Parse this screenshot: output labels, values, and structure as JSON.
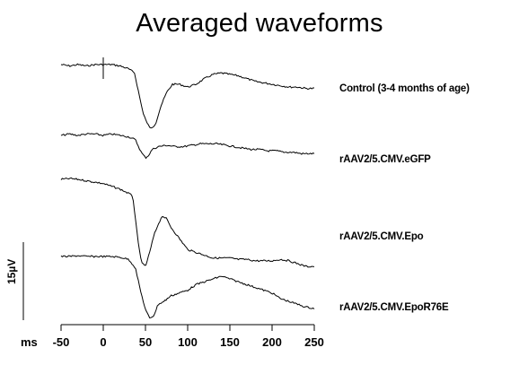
{
  "title": "Averaged waveforms",
  "chart_data": {
    "type": "line",
    "title": "Averaged waveforms",
    "xlabel": "ms",
    "xlim": [
      -50,
      250
    ],
    "xticks": [
      -50,
      0,
      50,
      100,
      150,
      200,
      250
    ],
    "scale_bar": "15µV",
    "stimulus_ms": 0,
    "series": [
      {
        "name": "Control (3-4 months of age)",
        "points": [
          [
            -50,
            0
          ],
          [
            -40,
            -0.5
          ],
          [
            -30,
            0
          ],
          [
            -20,
            -0.5
          ],
          [
            -10,
            0
          ],
          [
            0,
            0
          ],
          [
            10,
            0
          ],
          [
            20,
            -0.5
          ],
          [
            30,
            -1.5
          ],
          [
            37,
            -3
          ],
          [
            42,
            -10
          ],
          [
            47,
            -17
          ],
          [
            52,
            -21
          ],
          [
            57,
            -23
          ],
          [
            62,
            -21
          ],
          [
            68,
            -15
          ],
          [
            75,
            -10
          ],
          [
            82,
            -7
          ],
          [
            90,
            -7
          ],
          [
            100,
            -8
          ],
          [
            110,
            -7
          ],
          [
            120,
            -5
          ],
          [
            130,
            -3.5
          ],
          [
            140,
            -3
          ],
          [
            150,
            -3.5
          ],
          [
            160,
            -4
          ],
          [
            170,
            -5
          ],
          [
            180,
            -6
          ],
          [
            190,
            -6.5
          ],
          [
            200,
            -7
          ],
          [
            210,
            -7.5
          ],
          [
            220,
            -8
          ],
          [
            230,
            -8
          ],
          [
            240,
            -8.5
          ],
          [
            250,
            -8.5
          ]
        ],
        "color": "#000000"
      },
      {
        "name": "rAAV2/5.CMV.eGFP",
        "points": [
          [
            -50,
            0
          ],
          [
            -40,
            0.5
          ],
          [
            -30,
            0
          ],
          [
            -20,
            0.5
          ],
          [
            -10,
            0.5
          ],
          [
            0,
            0
          ],
          [
            10,
            0.5
          ],
          [
            20,
            0
          ],
          [
            30,
            -0.5
          ],
          [
            38,
            -1.5
          ],
          [
            45,
            -6
          ],
          [
            50,
            -8
          ],
          [
            54,
            -7
          ],
          [
            58,
            -5
          ],
          [
            65,
            -4
          ],
          [
            75,
            -3.5
          ],
          [
            85,
            -4
          ],
          [
            95,
            -4
          ],
          [
            105,
            -3.5
          ],
          [
            115,
            -3
          ],
          [
            125,
            -3
          ],
          [
            135,
            -3
          ],
          [
            145,
            -3.5
          ],
          [
            155,
            -4
          ],
          [
            165,
            -4.5
          ],
          [
            175,
            -5
          ],
          [
            185,
            -5
          ],
          [
            195,
            -5.5
          ],
          [
            205,
            -5.5
          ],
          [
            215,
            -6
          ],
          [
            225,
            -6
          ],
          [
            235,
            -6.5
          ],
          [
            250,
            -6.5
          ]
        ],
        "color": "#000000"
      },
      {
        "name": "rAAV2/5.CMV.Epo",
        "points": [
          [
            -50,
            0
          ],
          [
            -40,
            0.3
          ],
          [
            -30,
            0
          ],
          [
            -20,
            -0.5
          ],
          [
            -10,
            -1
          ],
          [
            0,
            -1.5
          ],
          [
            10,
            -2.5
          ],
          [
            20,
            -3.5
          ],
          [
            30,
            -5
          ],
          [
            35,
            -6
          ],
          [
            38,
            -14
          ],
          [
            42,
            -24
          ],
          [
            46,
            -30
          ],
          [
            50,
            -31
          ],
          [
            55,
            -26
          ],
          [
            60,
            -20
          ],
          [
            65,
            -16
          ],
          [
            70,
            -13
          ],
          [
            75,
            -14
          ],
          [
            80,
            -17
          ],
          [
            90,
            -21
          ],
          [
            100,
            -25
          ],
          [
            110,
            -26
          ],
          [
            120,
            -27
          ],
          [
            130,
            -28
          ],
          [
            140,
            -28
          ],
          [
            150,
            -28
          ],
          [
            160,
            -28.5
          ],
          [
            170,
            -28.5
          ],
          [
            180,
            -29
          ],
          [
            190,
            -29
          ],
          [
            200,
            -29
          ],
          [
            210,
            -28.5
          ],
          [
            220,
            -29
          ],
          [
            230,
            -30
          ],
          [
            240,
            -31
          ],
          [
            250,
            -31
          ]
        ],
        "color": "#000000"
      },
      {
        "name": "rAAV2/5.CMV.EpoR76E",
        "points": [
          [
            -50,
            0
          ],
          [
            -40,
            0
          ],
          [
            -30,
            0.3
          ],
          [
            -20,
            0
          ],
          [
            -10,
            0
          ],
          [
            0,
            0
          ],
          [
            10,
            0
          ],
          [
            20,
            -0.3
          ],
          [
            30,
            -1
          ],
          [
            38,
            -4
          ],
          [
            44,
            -12
          ],
          [
            50,
            -19
          ],
          [
            55,
            -22
          ],
          [
            60,
            -21
          ],
          [
            65,
            -17
          ],
          [
            72,
            -16
          ],
          [
            80,
            -14
          ],
          [
            90,
            -13
          ],
          [
            100,
            -12
          ],
          [
            110,
            -10
          ],
          [
            120,
            -9
          ],
          [
            130,
            -8
          ],
          [
            140,
            -7
          ],
          [
            150,
            -8
          ],
          [
            160,
            -9
          ],
          [
            170,
            -10
          ],
          [
            180,
            -11
          ],
          [
            190,
            -12
          ],
          [
            200,
            -13
          ],
          [
            210,
            -15
          ],
          [
            220,
            -16
          ],
          [
            230,
            -17
          ],
          [
            240,
            -18
          ],
          [
            250,
            -18.5
          ]
        ],
        "color": "#000000"
      }
    ]
  }
}
